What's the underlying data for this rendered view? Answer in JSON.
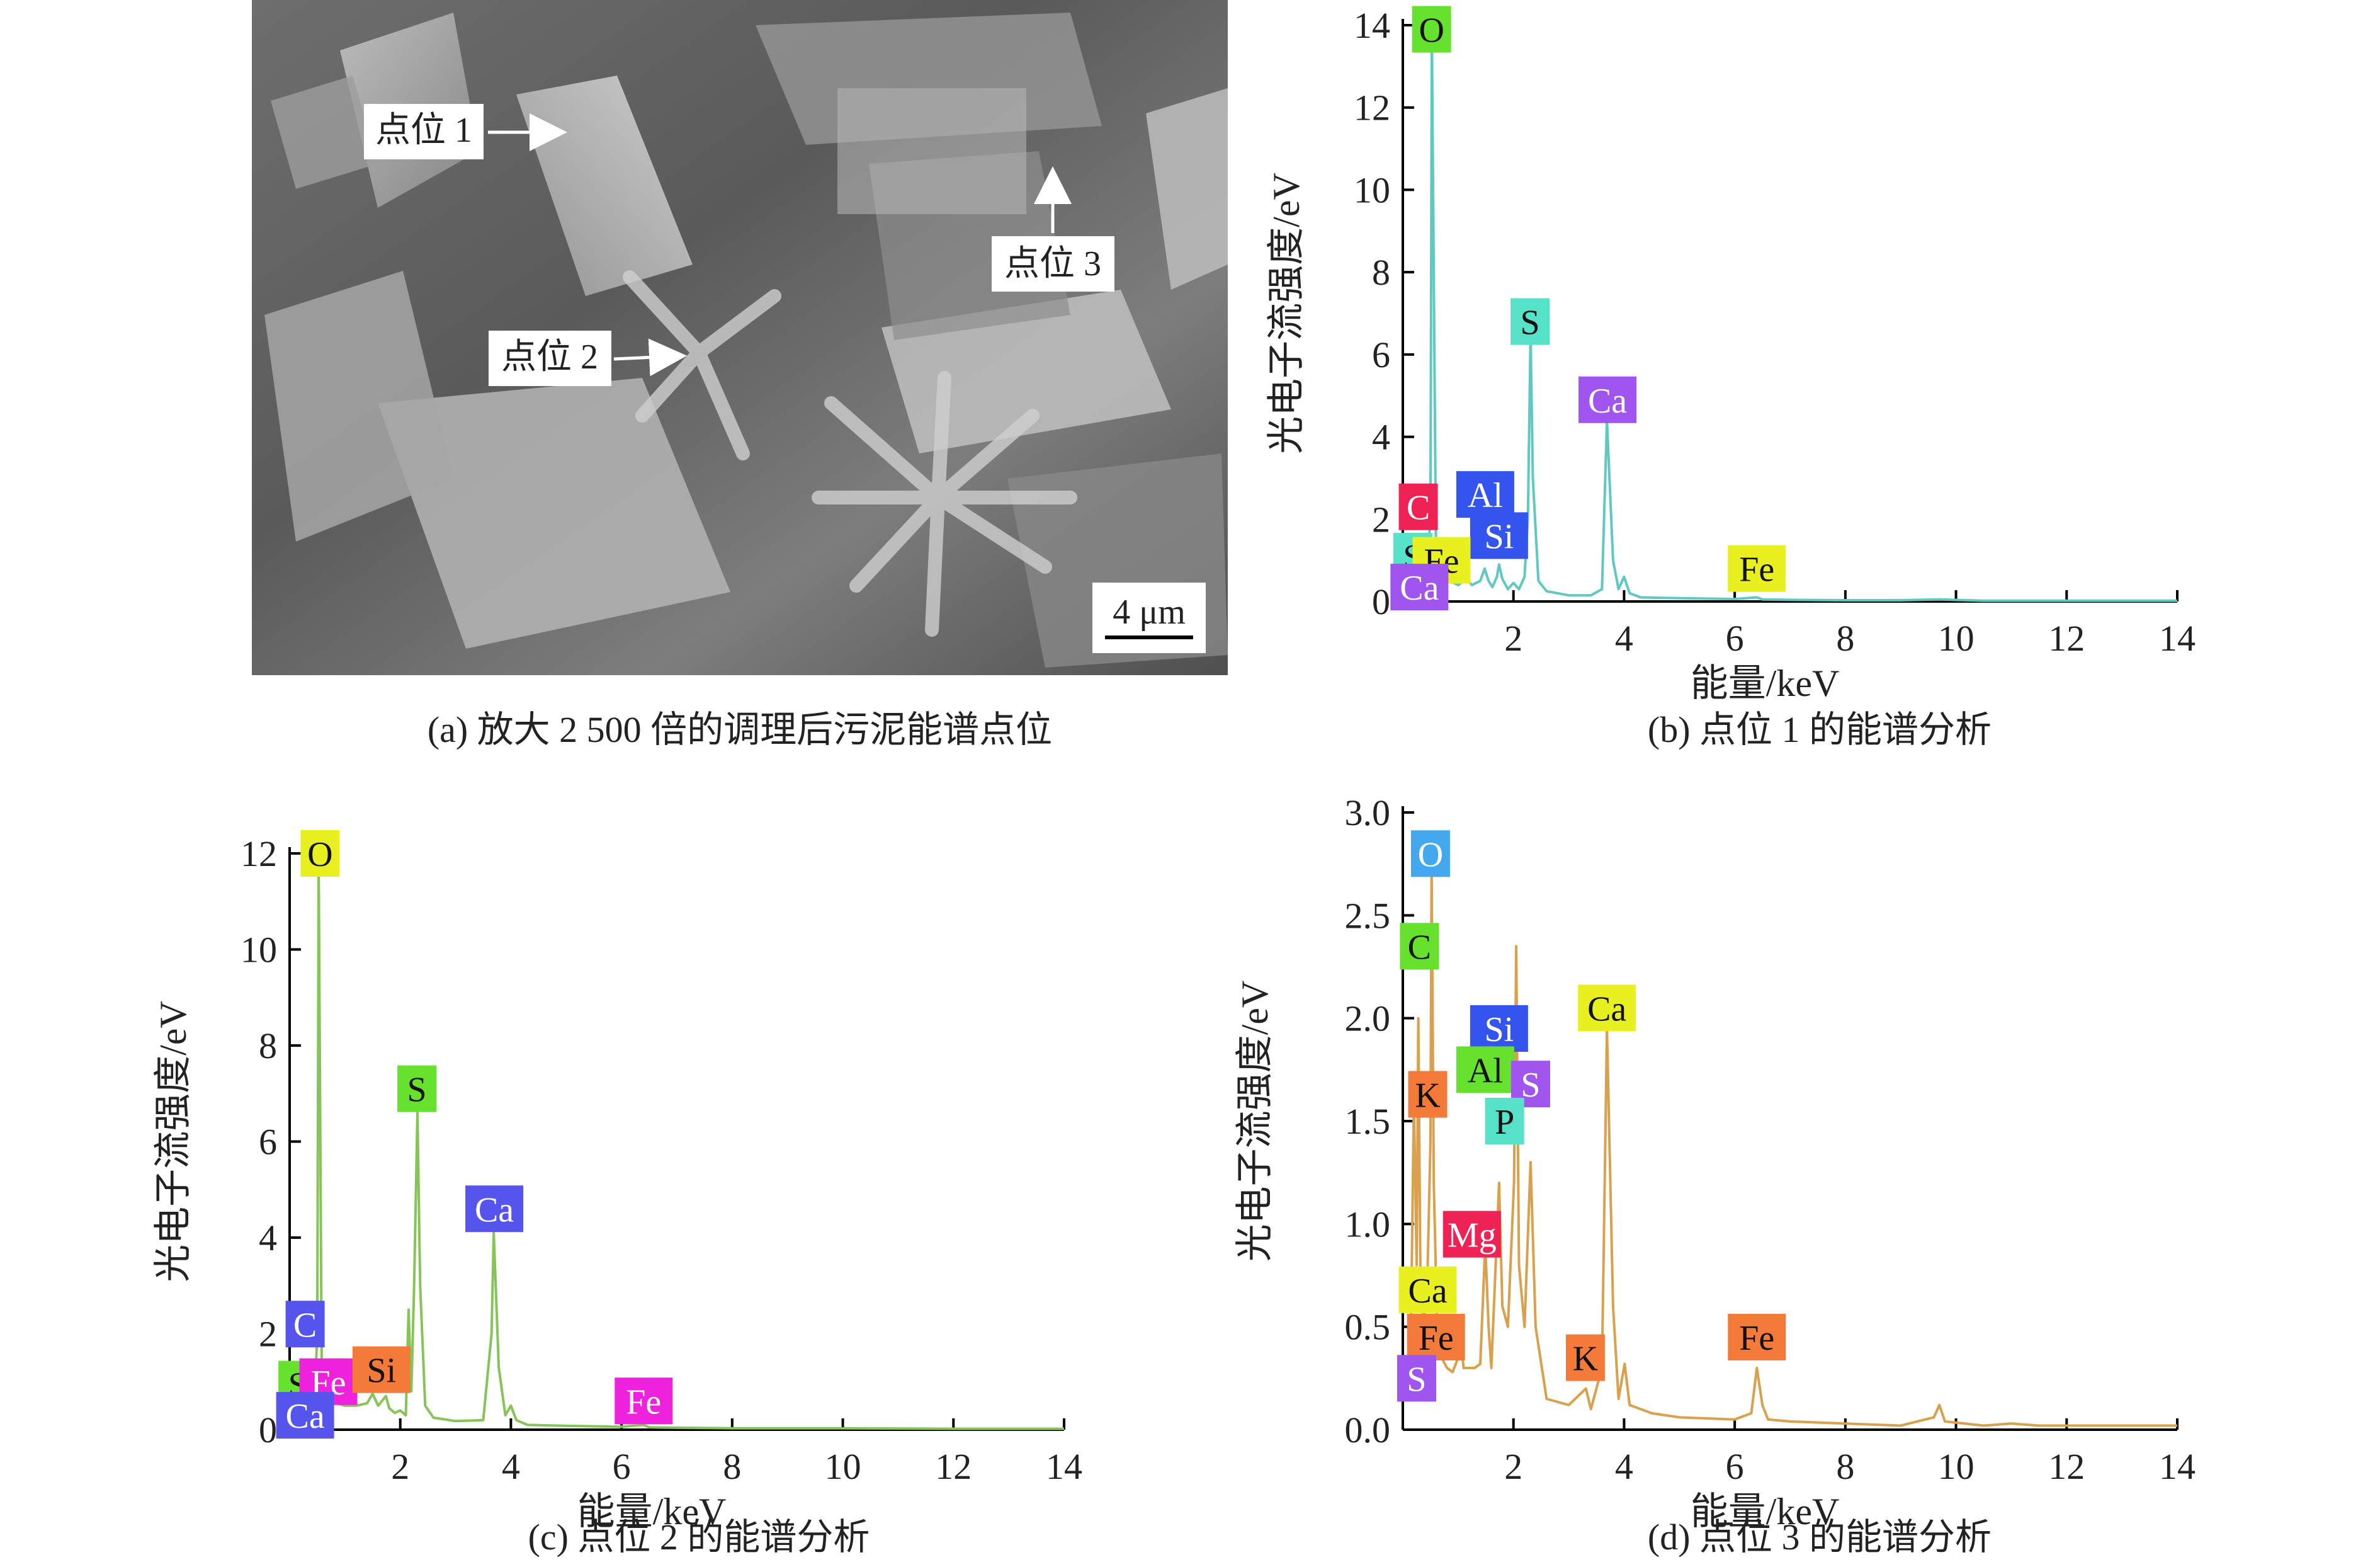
{
  "captions": {
    "a": "(a) 放大 2 500 倍的调理后污泥能谱点位",
    "b": "(b) 点位 1 的能谱分析",
    "c": "(c) 点位 2 的能谱分析",
    "d": "(d) 点位 3 的能谱分析"
  },
  "sem": {
    "points": [
      "点位 1",
      "点位 2",
      "点位 3"
    ],
    "scale_bar": "4 μm"
  },
  "chart_data": [
    {
      "id": "b",
      "type": "line",
      "xlabel": "能量/keV",
      "ylabel": "光电子流强度/eV",
      "xlim": [
        0,
        14
      ],
      "ylim": [
        0,
        14
      ],
      "xticks": [
        2,
        4,
        6,
        8,
        10,
        12,
        14
      ],
      "yticks": [
        0,
        2,
        4,
        6,
        8,
        10,
        12,
        14
      ],
      "line_color": "#5fc8c2",
      "series": [
        {
          "x": [
            0.05,
            0.2,
            0.27,
            0.33,
            0.42,
            0.5,
            0.525,
            0.6,
            0.7,
            0.85,
            1.0,
            1.15,
            1.25,
            1.4,
            1.48,
            1.55,
            1.62,
            1.7,
            1.74,
            1.8,
            1.9,
            2.0,
            2.1,
            2.2,
            2.26,
            2.31,
            2.35,
            2.45,
            2.6,
            3.0,
            3.4,
            3.6,
            3.69,
            3.8,
            3.9,
            4.0,
            4.1,
            4.3,
            5.0,
            6.0,
            6.4,
            6.5,
            7.0,
            8.0,
            9.0,
            9.7,
            10.5,
            12.0,
            14.0
          ],
          "y": [
            0.1,
            0.3,
            0.8,
            0.4,
            0.6,
            2.0,
            13.8,
            1.2,
            0.6,
            0.5,
            0.4,
            0.55,
            0.4,
            0.5,
            0.8,
            0.5,
            0.35,
            0.6,
            0.9,
            0.55,
            0.3,
            0.45,
            0.3,
            0.6,
            2.0,
            6.5,
            3.0,
            0.5,
            0.25,
            0.15,
            0.15,
            0.3,
            4.4,
            1.0,
            0.3,
            0.6,
            0.2,
            0.1,
            0.08,
            0.06,
            0.1,
            0.05,
            0.04,
            0.03,
            0.03,
            0.05,
            0.02,
            0.02,
            0.02
          ]
        }
      ],
      "annotations": [
        {
          "label": "O",
          "x": 0.52,
          "y": 13.9,
          "color": "#66e22e"
        },
        {
          "label": "S",
          "x": 2.3,
          "y": 6.8,
          "color": "#55e2c8"
        },
        {
          "label": "Ca",
          "x": 3.7,
          "y": 4.9,
          "color": "#9f55ee"
        },
        {
          "label": "Al",
          "x": 1.49,
          "y": 2.6,
          "color": "#3355ee"
        },
        {
          "label": "Si",
          "x": 1.74,
          "y": 1.6,
          "color": "#3355ee"
        },
        {
          "label": "C",
          "x": 0.28,
          "y": 2.3,
          "color": "#ee2255"
        },
        {
          "label": "S",
          "x": 0.18,
          "y": 1.1,
          "color": "#55e2c8"
        },
        {
          "label": "Fe",
          "x": 0.7,
          "y": 1.0,
          "color": "#e8f020"
        },
        {
          "label": "Ca",
          "x": 0.3,
          "y": 0.35,
          "color": "#9f55ee"
        },
        {
          "label": "Fe",
          "x": 6.4,
          "y": 0.8,
          "color": "#e8f020"
        }
      ]
    },
    {
      "id": "c",
      "type": "line",
      "xlabel": "能量/keV",
      "ylabel": "光电子流强度/eV",
      "xlim": [
        0,
        14
      ],
      "ylim": [
        0,
        12
      ],
      "xticks": [
        2,
        4,
        6,
        8,
        10,
        12,
        14
      ],
      "yticks": [
        0,
        2,
        4,
        6,
        8,
        10,
        12
      ],
      "line_color": "#86c457",
      "series": [
        {
          "x": [
            0.05,
            0.2,
            0.28,
            0.35,
            0.45,
            0.5,
            0.525,
            0.58,
            0.7,
            0.85,
            1.0,
            1.2,
            1.4,
            1.5,
            1.6,
            1.74,
            1.8,
            1.9,
            2.0,
            2.1,
            2.15,
            2.2,
            2.25,
            2.31,
            2.36,
            2.45,
            2.6,
            3.0,
            3.5,
            3.65,
            3.69,
            3.78,
            3.9,
            4.0,
            4.1,
            4.3,
            5.0,
            6.0,
            6.4,
            6.5,
            7.0,
            8.0,
            9.0,
            10.0,
            12.0,
            14.0
          ],
          "y": [
            0.1,
            0.3,
            0.9,
            0.4,
            0.6,
            2.0,
            11.8,
            1.2,
            0.6,
            0.55,
            0.5,
            0.5,
            0.55,
            0.75,
            0.5,
            0.7,
            0.45,
            0.35,
            0.4,
            0.3,
            2.5,
            0.8,
            3.0,
            6.6,
            3.0,
            0.5,
            0.25,
            0.18,
            0.2,
            2.0,
            4.1,
            1.3,
            0.3,
            0.5,
            0.2,
            0.1,
            0.08,
            0.06,
            0.1,
            0.05,
            0.04,
            0.03,
            0.03,
            0.03,
            0.02,
            0.02
          ]
        }
      ],
      "annotations": [
        {
          "label": "O",
          "x": 0.55,
          "y": 12.0,
          "color": "#e8f020"
        },
        {
          "label": "S",
          "x": 2.3,
          "y": 7.1,
          "color": "#66e22e"
        },
        {
          "label": "Ca",
          "x": 3.7,
          "y": 4.6,
          "color": "#5555ee"
        },
        {
          "label": "C",
          "x": 0.28,
          "y": 2.2,
          "color": "#5555ee"
        },
        {
          "label": "S",
          "x": 0.15,
          "y": 0.95,
          "color": "#66e22e"
        },
        {
          "label": "Fe",
          "x": 0.7,
          "y": 1.0,
          "color": "#ee22dd"
        },
        {
          "label": "Ca",
          "x": 0.28,
          "y": 0.3,
          "color": "#5555ee"
        },
        {
          "label": "Si",
          "x": 1.66,
          "y": 1.25,
          "color": "#f47a3a"
        },
        {
          "label": "Fe",
          "x": 6.4,
          "y": 0.6,
          "color": "#ee22dd"
        }
      ]
    },
    {
      "id": "d",
      "type": "line",
      "xlabel": "能量/keV",
      "ylabel": "光电子流强度/eV",
      "xlim": [
        0,
        14
      ],
      "ylim": [
        0,
        3.0
      ],
      "xticks": [
        2,
        4,
        6,
        8,
        10,
        12,
        14
      ],
      "yticks": [
        0,
        0.5,
        1.0,
        1.5,
        2.0,
        2.5,
        3.0
      ],
      "line_color": "#d9a04d",
      "series": [
        {
          "x": [
            0.05,
            0.15,
            0.2,
            0.25,
            0.28,
            0.32,
            0.38,
            0.45,
            0.5,
            0.52,
            0.56,
            0.62,
            0.7,
            0.8,
            0.9,
            1.0,
            1.04,
            1.1,
            1.2,
            1.3,
            1.4,
            1.49,
            1.55,
            1.6,
            1.74,
            1.8,
            1.9,
            2.01,
            2.05,
            2.1,
            2.2,
            2.31,
            2.4,
            2.6,
            3.0,
            3.31,
            3.4,
            3.6,
            3.69,
            3.8,
            3.9,
            4.01,
            4.1,
            4.5,
            5.0,
            6.0,
            6.3,
            6.4,
            6.5,
            6.6,
            7.0,
            8.0,
            9.0,
            9.6,
            9.7,
            9.8,
            10.5,
            11.0,
            11.5,
            12.0,
            13.0,
            14.0
          ],
          "y": [
            0.15,
            0.55,
            1.6,
            0.8,
            2.0,
            0.7,
            0.5,
            0.8,
            1.4,
            2.75,
            1.2,
            0.5,
            0.35,
            0.3,
            0.28,
            0.35,
            0.45,
            0.3,
            0.3,
            0.3,
            0.32,
            0.9,
            0.5,
            0.3,
            1.2,
            0.6,
            0.5,
            1.2,
            2.35,
            0.8,
            0.5,
            1.3,
            0.5,
            0.15,
            0.12,
            0.2,
            0.1,
            0.3,
            1.95,
            0.6,
            0.15,
            0.32,
            0.12,
            0.08,
            0.06,
            0.05,
            0.08,
            0.3,
            0.12,
            0.05,
            0.04,
            0.03,
            0.02,
            0.06,
            0.12,
            0.04,
            0.02,
            0.03,
            0.02,
            0.02,
            0.02,
            0.02
          ]
        }
      ],
      "annotations": [
        {
          "label": "O",
          "x": 0.5,
          "y": 2.8,
          "color": "#44a8ee"
        },
        {
          "label": "C",
          "x": 0.3,
          "y": 2.35,
          "color": "#66e22e"
        },
        {
          "label": "Si",
          "x": 1.74,
          "y": 1.95,
          "color": "#3355ee"
        },
        {
          "label": "Ca",
          "x": 3.69,
          "y": 2.05,
          "color": "#e8f020"
        },
        {
          "label": "Al",
          "x": 1.49,
          "y": 1.75,
          "color": "#66e22e"
        },
        {
          "label": "S",
          "x": 2.31,
          "y": 1.68,
          "color": "#9f55ee"
        },
        {
          "label": "K",
          "x": 0.45,
          "y": 1.63,
          "color": "#f47a3a"
        },
        {
          "label": "P",
          "x": 1.84,
          "y": 1.5,
          "color": "#55e2c8"
        },
        {
          "label": "Mg",
          "x": 1.25,
          "y": 0.95,
          "color": "#ee2255"
        },
        {
          "label": "Ca",
          "x": 0.45,
          "y": 0.68,
          "color": "#e8f020"
        },
        {
          "label": "Fe",
          "x": 0.6,
          "y": 0.45,
          "color": "#f47a3a"
        },
        {
          "label": "K",
          "x": 3.3,
          "y": 0.35,
          "color": "#f47a3a"
        },
        {
          "label": "Fe",
          "x": 6.4,
          "y": 0.45,
          "color": "#f47a3a"
        },
        {
          "label": "S",
          "x": 0.25,
          "y": 0.25,
          "color": "#9f55ee"
        }
      ]
    }
  ]
}
